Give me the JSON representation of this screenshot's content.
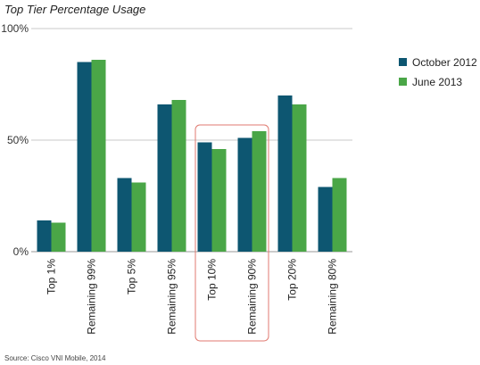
{
  "chart_data": {
    "type": "bar",
    "title": "Top Tier Percentage Usage",
    "categories": [
      "Top 1%",
      "Remaining 99%",
      "Top 5%",
      "Remaining 95%",
      "Top 10%",
      "Remaining 90%",
      "Top 20%",
      "Remaining 80%"
    ],
    "series": [
      {
        "name": "October 2012",
        "values": [
          14,
          85,
          33,
          66,
          49,
          51,
          70,
          29
        ],
        "color": "#0d5671"
      },
      {
        "name": "June 2013",
        "values": [
          13,
          86,
          31,
          68,
          46,
          54,
          66,
          33
        ],
        "color": "#4aa647"
      }
    ],
    "yticks": [
      "0%",
      "50%",
      "100%"
    ],
    "ylim": [
      0,
      100
    ],
    "grid": true,
    "legend_position": "right",
    "highlighted_categories": [
      "Top 10%",
      "Remaining 90%"
    ],
    "highlight_color": "#e07a70",
    "source": "Source: Cisco VNI Mobile, 2014"
  }
}
